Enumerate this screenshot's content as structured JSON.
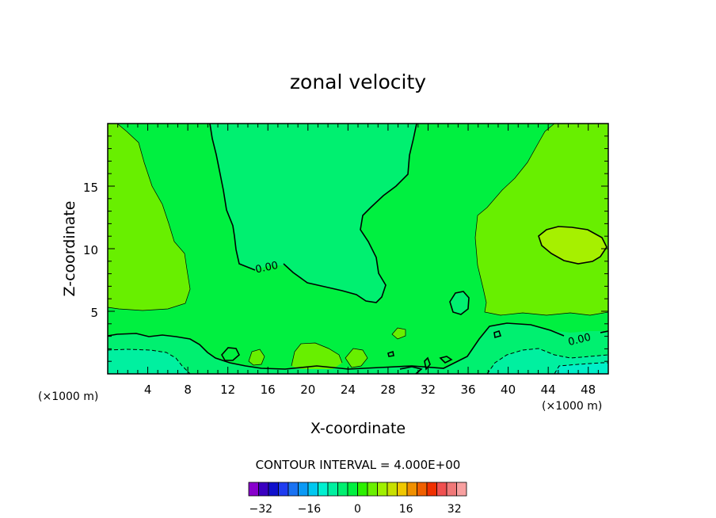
{
  "chart_data": {
    "type": "contour",
    "title": "zonal velocity",
    "xlabel": "X-coordinate",
    "ylabel": "Z-coordinate",
    "x_unit_left": "(×1000 m)",
    "x_unit_right": "(×1000 m)",
    "xlim": [
      0,
      50
    ],
    "ylim": [
      0,
      20
    ],
    "xticks": [
      "4",
      "8",
      "12",
      "16",
      "20",
      "24",
      "28",
      "32",
      "36",
      "40",
      "44",
      "48"
    ],
    "yticks": [
      "5",
      "10",
      "15"
    ],
    "contour_interval_text": "CONTOUR INTERVAL = 4.000E+00",
    "contour_label": "0.00",
    "colorbar": {
      "min": -36,
      "max": 36,
      "step": 4,
      "tick_values": [
        -32,
        -16,
        0,
        16,
        32
      ],
      "tick_labels": [
        "−32",
        "−16",
        "0",
        "16",
        "32"
      ],
      "colors": [
        "#8800cc",
        "#3a00c0",
        "#1010cc",
        "#1f3cf0",
        "#1a72f2",
        "#0a99f5",
        "#00c8f0",
        "#00f0d0",
        "#00f0a0",
        "#00f070",
        "#00f040",
        "#2cf000",
        "#6af000",
        "#a0f000",
        "#c8e000",
        "#f0c800",
        "#f09000",
        "#f06000",
        "#f03000",
        "#f05050",
        "#f07878",
        "#f8a0a0"
      ]
    },
    "regions": [
      {
        "name": "weak positive (0 to 4)",
        "color": "#68ef00"
      },
      {
        "name": "near zero (-4 to 0)",
        "color": "#00f040"
      },
      {
        "name": "negative (-8 to -4)",
        "color": "#00f070"
      },
      {
        "name": "negative (-12 to -8)",
        "color": "#00f0a0"
      },
      {
        "name": "positive maximum (4 to 8)",
        "color": "#a6f000"
      }
    ]
  }
}
